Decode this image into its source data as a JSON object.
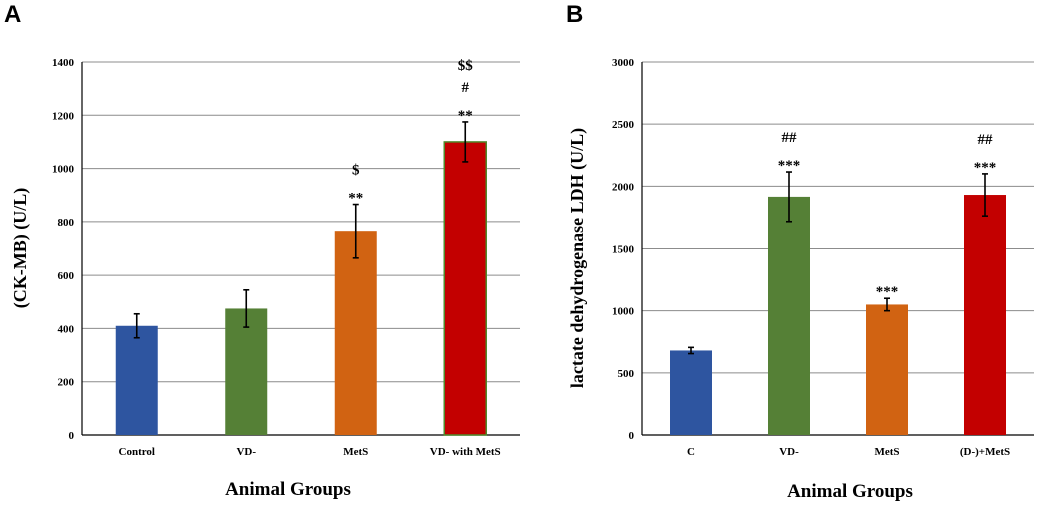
{
  "chart_data": [
    {
      "type": "bar",
      "panel": "A",
      "title": "",
      "xlabel": "Animal Groups",
      "ylabel": "(CK-MB) (U/L)",
      "ylim": [
        0,
        1400
      ],
      "yticks": [
        0,
        200,
        400,
        600,
        800,
        1000,
        1200,
        1400
      ],
      "grid": true,
      "categories": [
        "Control",
        "VD-",
        "MetS",
        "VD- with MetS"
      ],
      "values": [
        410,
        475,
        765,
        1100
      ],
      "errors": [
        45,
        70,
        100,
        75
      ],
      "colors": [
        "#2e55a0",
        "#558036",
        "#d16312",
        "#c30000"
      ],
      "annotations": [
        [],
        [],
        [
          "$",
          "**"
        ],
        [
          "$$",
          "#",
          "**"
        ]
      ]
    },
    {
      "type": "bar",
      "panel": "B",
      "title": "",
      "xlabel": "Animal Groups",
      "ylabel": "lactate dehydrogenase LDH (U/L)",
      "ylim": [
        0,
        3000
      ],
      "yticks": [
        0,
        500,
        1000,
        1500,
        2000,
        2500,
        3000
      ],
      "grid": true,
      "categories": [
        "C",
        "VD-",
        "MetS",
        "(D-)+MetS"
      ],
      "values": [
        680,
        1915,
        1050,
        1930
      ],
      "errors": [
        25,
        200,
        50,
        170
      ],
      "colors": [
        "#2e55a0",
        "#558036",
        "#d16312",
        "#c30000"
      ],
      "annotations": [
        [],
        [
          "##",
          "***"
        ],
        [
          "***"
        ],
        [
          "##",
          "***"
        ]
      ]
    }
  ]
}
